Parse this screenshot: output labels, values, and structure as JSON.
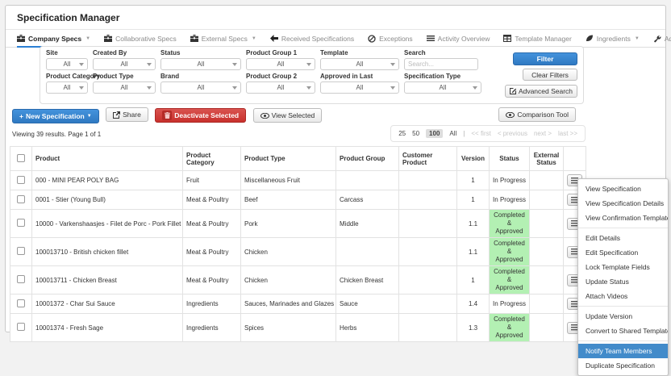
{
  "header": {
    "title": "Specification Manager"
  },
  "tabs": [
    {
      "label": "Company Specs",
      "icon": "briefcase",
      "caret": true,
      "active": true
    },
    {
      "label": "Collaborative Specs",
      "icon": "briefcase",
      "caret": false,
      "active": false
    },
    {
      "label": "External Specs",
      "icon": "briefcase",
      "caret": true,
      "active": false
    },
    {
      "label": "Received Specifications",
      "icon": "arrow-left",
      "caret": false,
      "active": false
    },
    {
      "label": "Exceptions",
      "icon": "ban",
      "caret": false,
      "active": false
    },
    {
      "label": "Activity Overview",
      "icon": "list",
      "caret": false,
      "active": false
    },
    {
      "label": "Template Manager",
      "icon": "table",
      "caret": false,
      "active": false
    },
    {
      "label": "Ingredients",
      "icon": "leaf",
      "caret": true,
      "active": false
    },
    {
      "label": "Admin",
      "icon": "wrench",
      "caret": true,
      "active": false
    }
  ],
  "filters": {
    "fields_row1": [
      {
        "label": "Site",
        "value": "All"
      },
      {
        "label": "Created By",
        "value": "All"
      },
      {
        "label": "Status",
        "value": "All"
      },
      {
        "label": "Product Group 1",
        "value": "All"
      },
      {
        "label": "Template",
        "value": "All"
      }
    ],
    "fields_row2": [
      {
        "label": "Product Category",
        "value": "All"
      },
      {
        "label": "Product Type",
        "value": "All"
      },
      {
        "label": "Brand",
        "value": "All"
      },
      {
        "label": "Product Group 2",
        "value": "All"
      },
      {
        "label": "Approved in Last",
        "value": "All"
      },
      {
        "label": "Specification Type",
        "value": "All"
      }
    ],
    "search": {
      "label": "Search",
      "placeholder": "Search..."
    },
    "buttons": {
      "filter": "Filter",
      "clear": "Clear Filters",
      "advanced": "Advanced Search"
    }
  },
  "actions": {
    "new_spec": "New Specification",
    "share": "Share",
    "deactivate": "Deactivate Selected",
    "view_selected": "View Selected",
    "comparison": "Comparison Tool"
  },
  "results_bar": {
    "viewing": "Viewing 39 results. Page 1 of 1",
    "page_sizes": [
      "25",
      "50",
      "100",
      "All"
    ],
    "active_size": "100",
    "nav": [
      "<< first",
      "< previous",
      "next >",
      "last >>"
    ]
  },
  "table": {
    "columns": [
      "Product",
      "Product Category",
      "Product Type",
      "Product Group",
      "Customer Product",
      "Version",
      "Status",
      "External Status"
    ],
    "rows": [
      {
        "product": "000 - MINI PEAR POLY BAG",
        "category": "Fruit",
        "type": "Miscellaneous Fruit",
        "group": "",
        "customer": "",
        "version": "1",
        "status": "In Progress",
        "status_style": "progress"
      },
      {
        "product": "0001 - Stier (Young Bull)",
        "category": "Meat & Poultry",
        "type": "Beef",
        "group": "Carcass",
        "customer": "",
        "version": "1",
        "status": "In Progress",
        "status_style": "progress"
      },
      {
        "product": "10000 - Varkenshaasjes - Filet de Porc - Pork Fillet",
        "category": "Meat & Poultry",
        "type": "Pork",
        "group": "Middle",
        "customer": "",
        "version": "1.1",
        "status": "Completed & Approved",
        "status_style": "approved"
      },
      {
        "product": "100013710 - British chicken fillet",
        "category": "Meat & Poultry",
        "type": "Chicken",
        "group": "",
        "customer": "",
        "version": "1.1",
        "status": "Completed & Approved",
        "status_style": "approved"
      },
      {
        "product": "100013711 - Chicken Breast",
        "category": "Meat & Poultry",
        "type": "Chicken",
        "group": "Chicken Breast",
        "customer": "",
        "version": "1",
        "status": "Completed & Approved",
        "status_style": "approved"
      },
      {
        "product": "10001372 - Char Sui Sauce",
        "category": "Ingredients",
        "type": "Sauces, Marinades and Glazes",
        "group": "Sauce",
        "customer": "",
        "version": "1.4",
        "status": "In Progress",
        "status_style": "progress"
      },
      {
        "product": "10001374 - Fresh Sage",
        "category": "Ingredients",
        "type": "Spices",
        "group": "Herbs",
        "customer": "",
        "version": "1.3",
        "status": "Completed & Approved",
        "status_style": "approved"
      }
    ]
  },
  "context_menu": {
    "items": [
      {
        "label": "View Specification"
      },
      {
        "label": "View Specification Details"
      },
      {
        "label": "View Confirmation Template"
      },
      {
        "divider": true
      },
      {
        "label": "Edit Details"
      },
      {
        "label": "Edit Specification"
      },
      {
        "label": "Lock Template Fields"
      },
      {
        "label": "Update Status"
      },
      {
        "label": "Attach Videos"
      },
      {
        "divider": true
      },
      {
        "label": "Update Version"
      },
      {
        "label": "Convert to Shared Template"
      },
      {
        "divider": true
      },
      {
        "label": "Notify Team Members",
        "highlighted": true
      },
      {
        "label": "Duplicate Specification"
      }
    ]
  },
  "colors": {
    "accent_blue": "#3c8dd9",
    "danger_red": "#d9534f",
    "approved_green": "#b3f0b3",
    "menu_highlight": "#428bca",
    "tab_active_underline": "#2b7fd4"
  }
}
